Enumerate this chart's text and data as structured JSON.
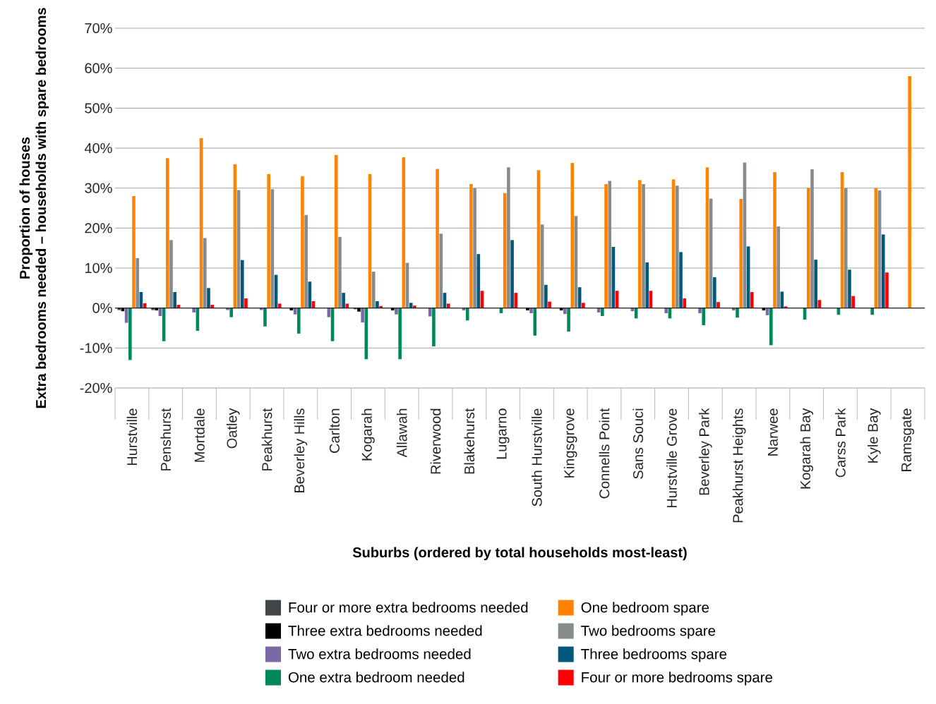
{
  "chart_data": {
    "type": "bar",
    "xlabel": "Suburbs (ordered by total households most-least)",
    "ylabel": "Proportion of houses",
    "annotations": [
      "Extra bedrooms needed – households with spare bedrooms"
    ],
    "categories": [
      "Hurstville",
      "Penshurst",
      "Mortdale",
      "Oatley",
      "Peakhurst",
      "Beverley Hills",
      "Carlton",
      "Kogarah",
      "Allawah",
      "Riverwood",
      "Blakehurst",
      "Lugarno",
      "South Hurstville",
      "Kingsgrove",
      "Connells Point",
      "Sans Souci",
      "Hurstville Grove",
      "Beverley Park",
      "Peakhurst Heights",
      "Narwee",
      "Kogarah Bay",
      "Carss Park",
      "Kyle Bay",
      "Ramsgate"
    ],
    "series": [
      {
        "name": "Four or more extra bedrooms needed",
        "color": "#404548",
        "values": [
          -0.5,
          -0.5,
          0,
          0,
          0,
          0,
          0,
          -0.3,
          0,
          0,
          0,
          0,
          null,
          0,
          0,
          0,
          0,
          0,
          0,
          0,
          0,
          0,
          0,
          0
        ]
      },
      {
        "name": "Three extra bedrooms needed",
        "color": "#000000",
        "values": [
          -0.8,
          -0.6,
          0,
          0,
          0,
          -0.6,
          0,
          -0.9,
          -0.6,
          0,
          0,
          0,
          -0.6,
          -0.6,
          0,
          0,
          0,
          0,
          0,
          -0.6,
          0,
          0,
          0,
          0
        ]
      },
      {
        "name": "Two extra bedrooms needed",
        "color": "#7b68a6",
        "values": [
          -3.7,
          -2,
          -1.1,
          -0.5,
          -0.5,
          -1.6,
          -2.3,
          -3.6,
          -1.6,
          -2.1,
          -0.6,
          0,
          -1.3,
          -1.5,
          -1.1,
          -0.8,
          -1.3,
          -1.3,
          -0.6,
          -1.8,
          0,
          0,
          0,
          0
        ]
      },
      {
        "name": "One extra bedroom needed",
        "color": "#00875a",
        "values": [
          -13,
          -8.3,
          -5.7,
          -2.3,
          -4.6,
          -6.4,
          -8.3,
          -12.8,
          -12.8,
          -9.6,
          -3.1,
          -1.3,
          -6.9,
          -5.9,
          -2,
          -2.6,
          -2.6,
          -4.3,
          -2.4,
          -9.3,
          -2.9,
          -1.7,
          -1.7,
          0
        ]
      },
      {
        "name": "One bedroom spare",
        "color": "#ff8300",
        "values": [
          28,
          37.5,
          42.5,
          36,
          33.5,
          33,
          38.3,
          33.5,
          37.7,
          34.8,
          31,
          28.7,
          34.5,
          36.3,
          31,
          32,
          32.2,
          35.2,
          27.3,
          34,
          30,
          34,
          30,
          58
        ]
      },
      {
        "name": "Two bedrooms spare",
        "color": "#868b8e",
        "values": [
          12.5,
          17,
          17.5,
          29.5,
          29.7,
          23.3,
          17.8,
          9.1,
          11.3,
          18.6,
          30,
          35.2,
          20.9,
          23,
          31.8,
          31,
          30.6,
          27.4,
          36.4,
          20.4,
          34.7,
          30,
          29.4,
          0
        ]
      },
      {
        "name": "Three bedrooms spare",
        "color": "#00587c",
        "values": [
          4,
          4,
          5,
          12,
          8.3,
          6.6,
          3.8,
          1.7,
          1.3,
          3.8,
          13.5,
          17,
          5.8,
          5.2,
          15.3,
          11.4,
          14,
          7.7,
          15.4,
          4.1,
          12.1,
          9.6,
          18.4,
          0
        ]
      },
      {
        "name": "Four or more bedrooms spare",
        "color": "#ff0000",
        "values": [
          1.2,
          0.8,
          0.8,
          2.4,
          1.1,
          1.7,
          1.1,
          0.5,
          0.6,
          1.1,
          4.3,
          3.8,
          1.6,
          1.3,
          4.3,
          4.3,
          2.4,
          1.5,
          4,
          0.4,
          2,
          3,
          8.9,
          0
        ]
      }
    ],
    "ylim": [
      -20,
      70
    ],
    "yticks": [
      {
        "value": -20,
        "label": "-20%"
      },
      {
        "value": -10,
        "label": "-10%"
      },
      {
        "value": 0,
        "label": "0%"
      },
      {
        "value": 10,
        "label": "10%"
      },
      {
        "value": 20,
        "label": "20%"
      },
      {
        "value": 30,
        "label": "30%"
      },
      {
        "value": 40,
        "label": "40%"
      },
      {
        "value": 50,
        "label": "50%"
      },
      {
        "value": 60,
        "label": "60%"
      },
      {
        "value": 70,
        "label": "70%"
      }
    ],
    "grid": "y",
    "legend": "bottom"
  }
}
